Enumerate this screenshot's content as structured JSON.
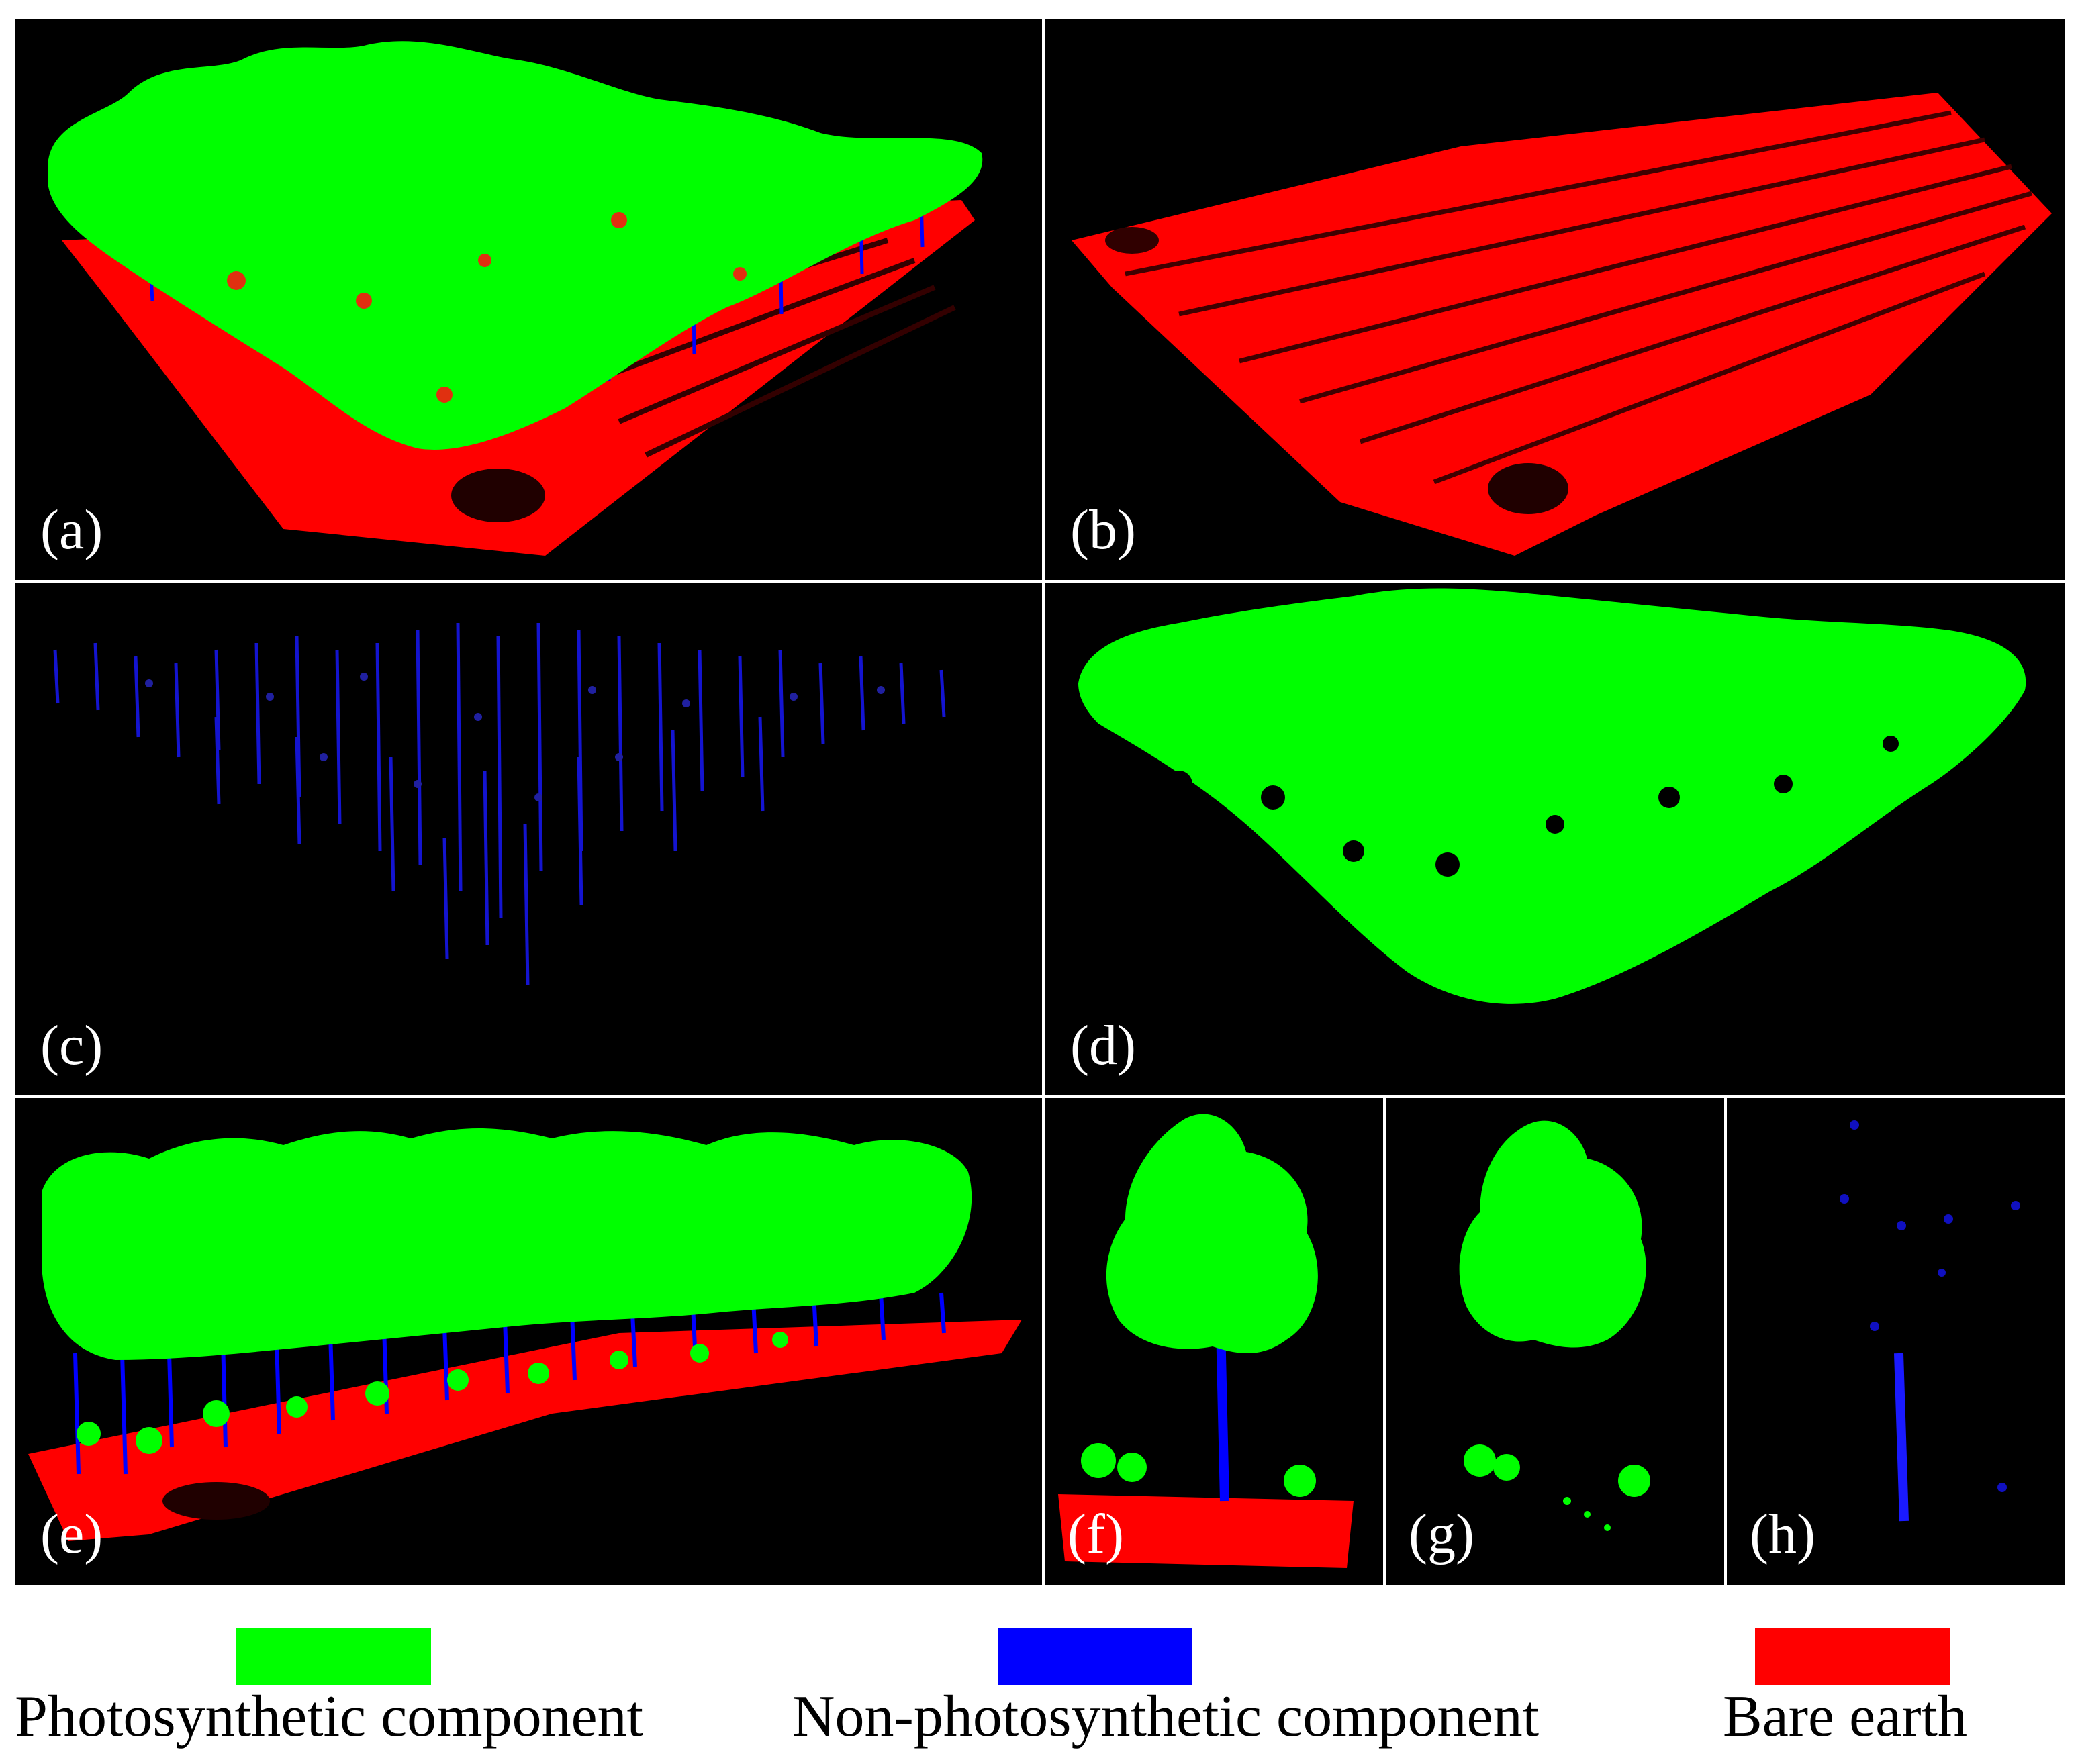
{
  "panels": [
    {
      "id": "a",
      "label": "(a)"
    },
    {
      "id": "b",
      "label": "(b)"
    },
    {
      "id": "c",
      "label": "(c)"
    },
    {
      "id": "d",
      "label": "(d)"
    },
    {
      "id": "e",
      "label": "(e)"
    },
    {
      "id": "f",
      "label": "(f)"
    },
    {
      "id": "g",
      "label": "(g)"
    },
    {
      "id": "h",
      "label": "(h)"
    }
  ],
  "legend": {
    "items": [
      {
        "label": "Photosynthetic component",
        "color": "#00ff00"
      },
      {
        "label": "Non-photosynthetic component",
        "color": "#0000ff"
      },
      {
        "label": "Bare earth",
        "color": "#ff0000"
      }
    ]
  },
  "colors": {
    "background": "#000000",
    "photosynthetic": "#00ff00",
    "non_photosynthetic": "#0000ff",
    "bare_earth": "#ff0000"
  }
}
